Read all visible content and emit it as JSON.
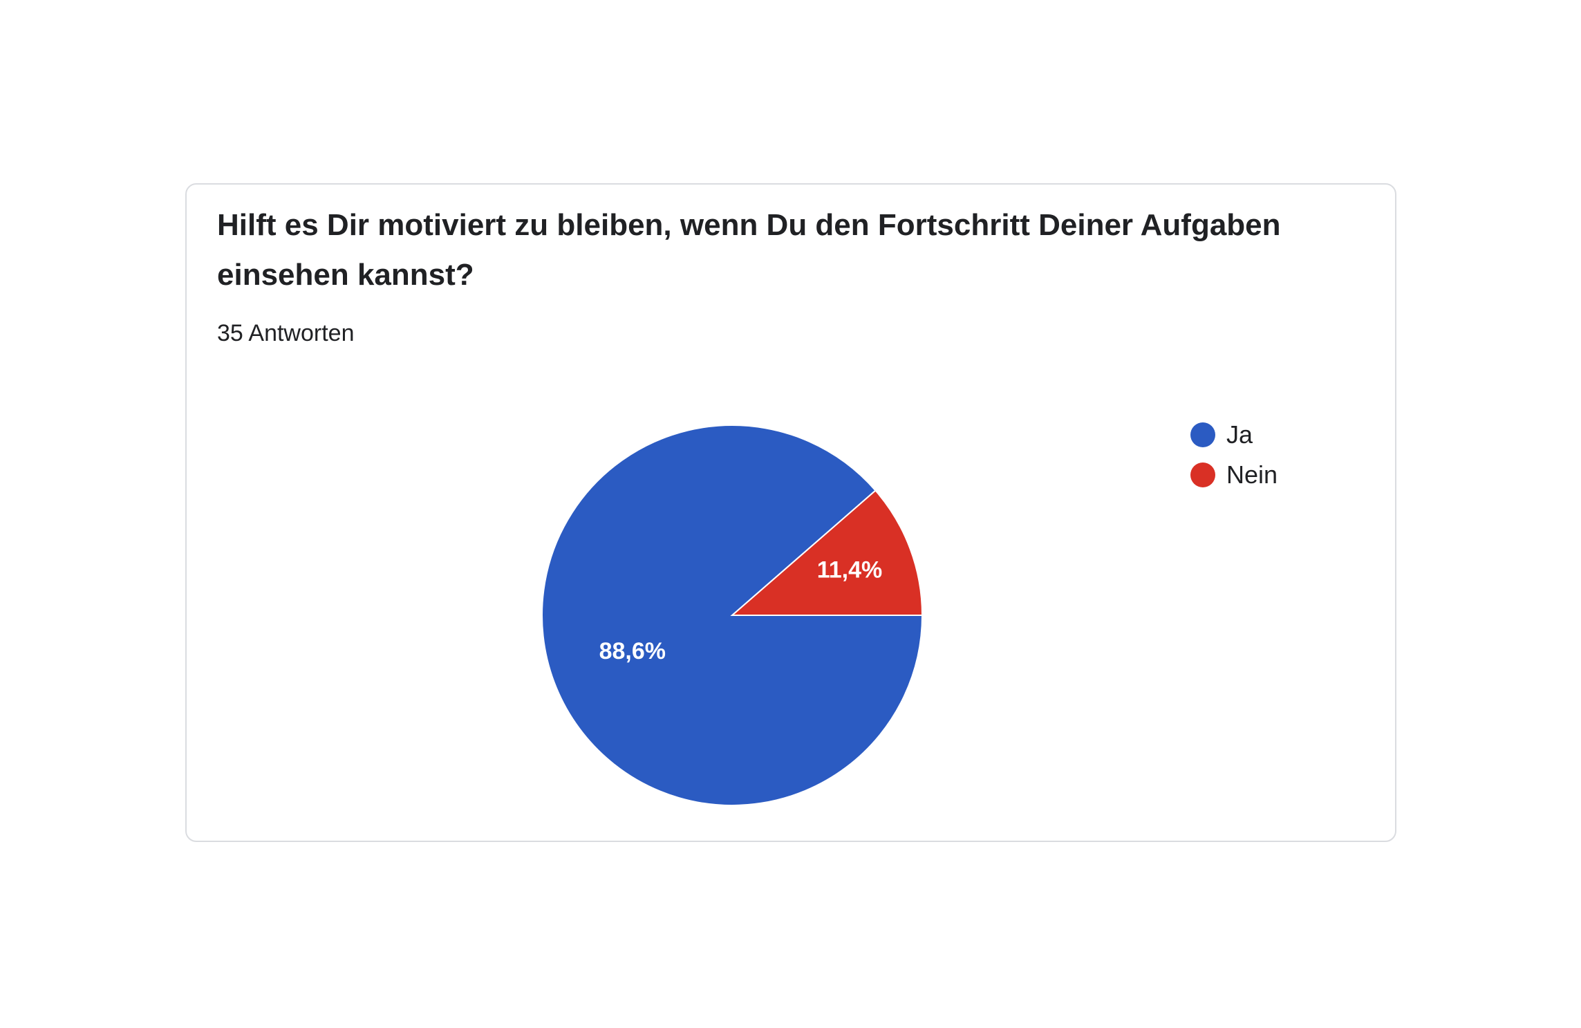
{
  "card": {
    "question": "Hilft es Dir motiviert zu bleiben, wenn Du den Fortschritt Deiner Aufgaben einsehen kannst?",
    "responses": "35 Antworten"
  },
  "chart_data": {
    "type": "pie",
    "title": "Hilft es Dir motiviert zu bleiben, wenn Du den Fortschritt Deiner Aufgaben einsehen kannst?",
    "subtitle": "35 Antworten",
    "legend_position": "right",
    "slices": [
      {
        "name": "Ja",
        "value": 88.6,
        "label": "88,6%",
        "color": "#2b5bc2"
      },
      {
        "name": "Nein",
        "value": 11.4,
        "label": "11,4%",
        "color": "#d93025"
      }
    ]
  },
  "legend": {
    "items": [
      {
        "label": "Ja",
        "color": "#2b5bc2"
      },
      {
        "label": "Nein",
        "color": "#d93025"
      }
    ]
  }
}
